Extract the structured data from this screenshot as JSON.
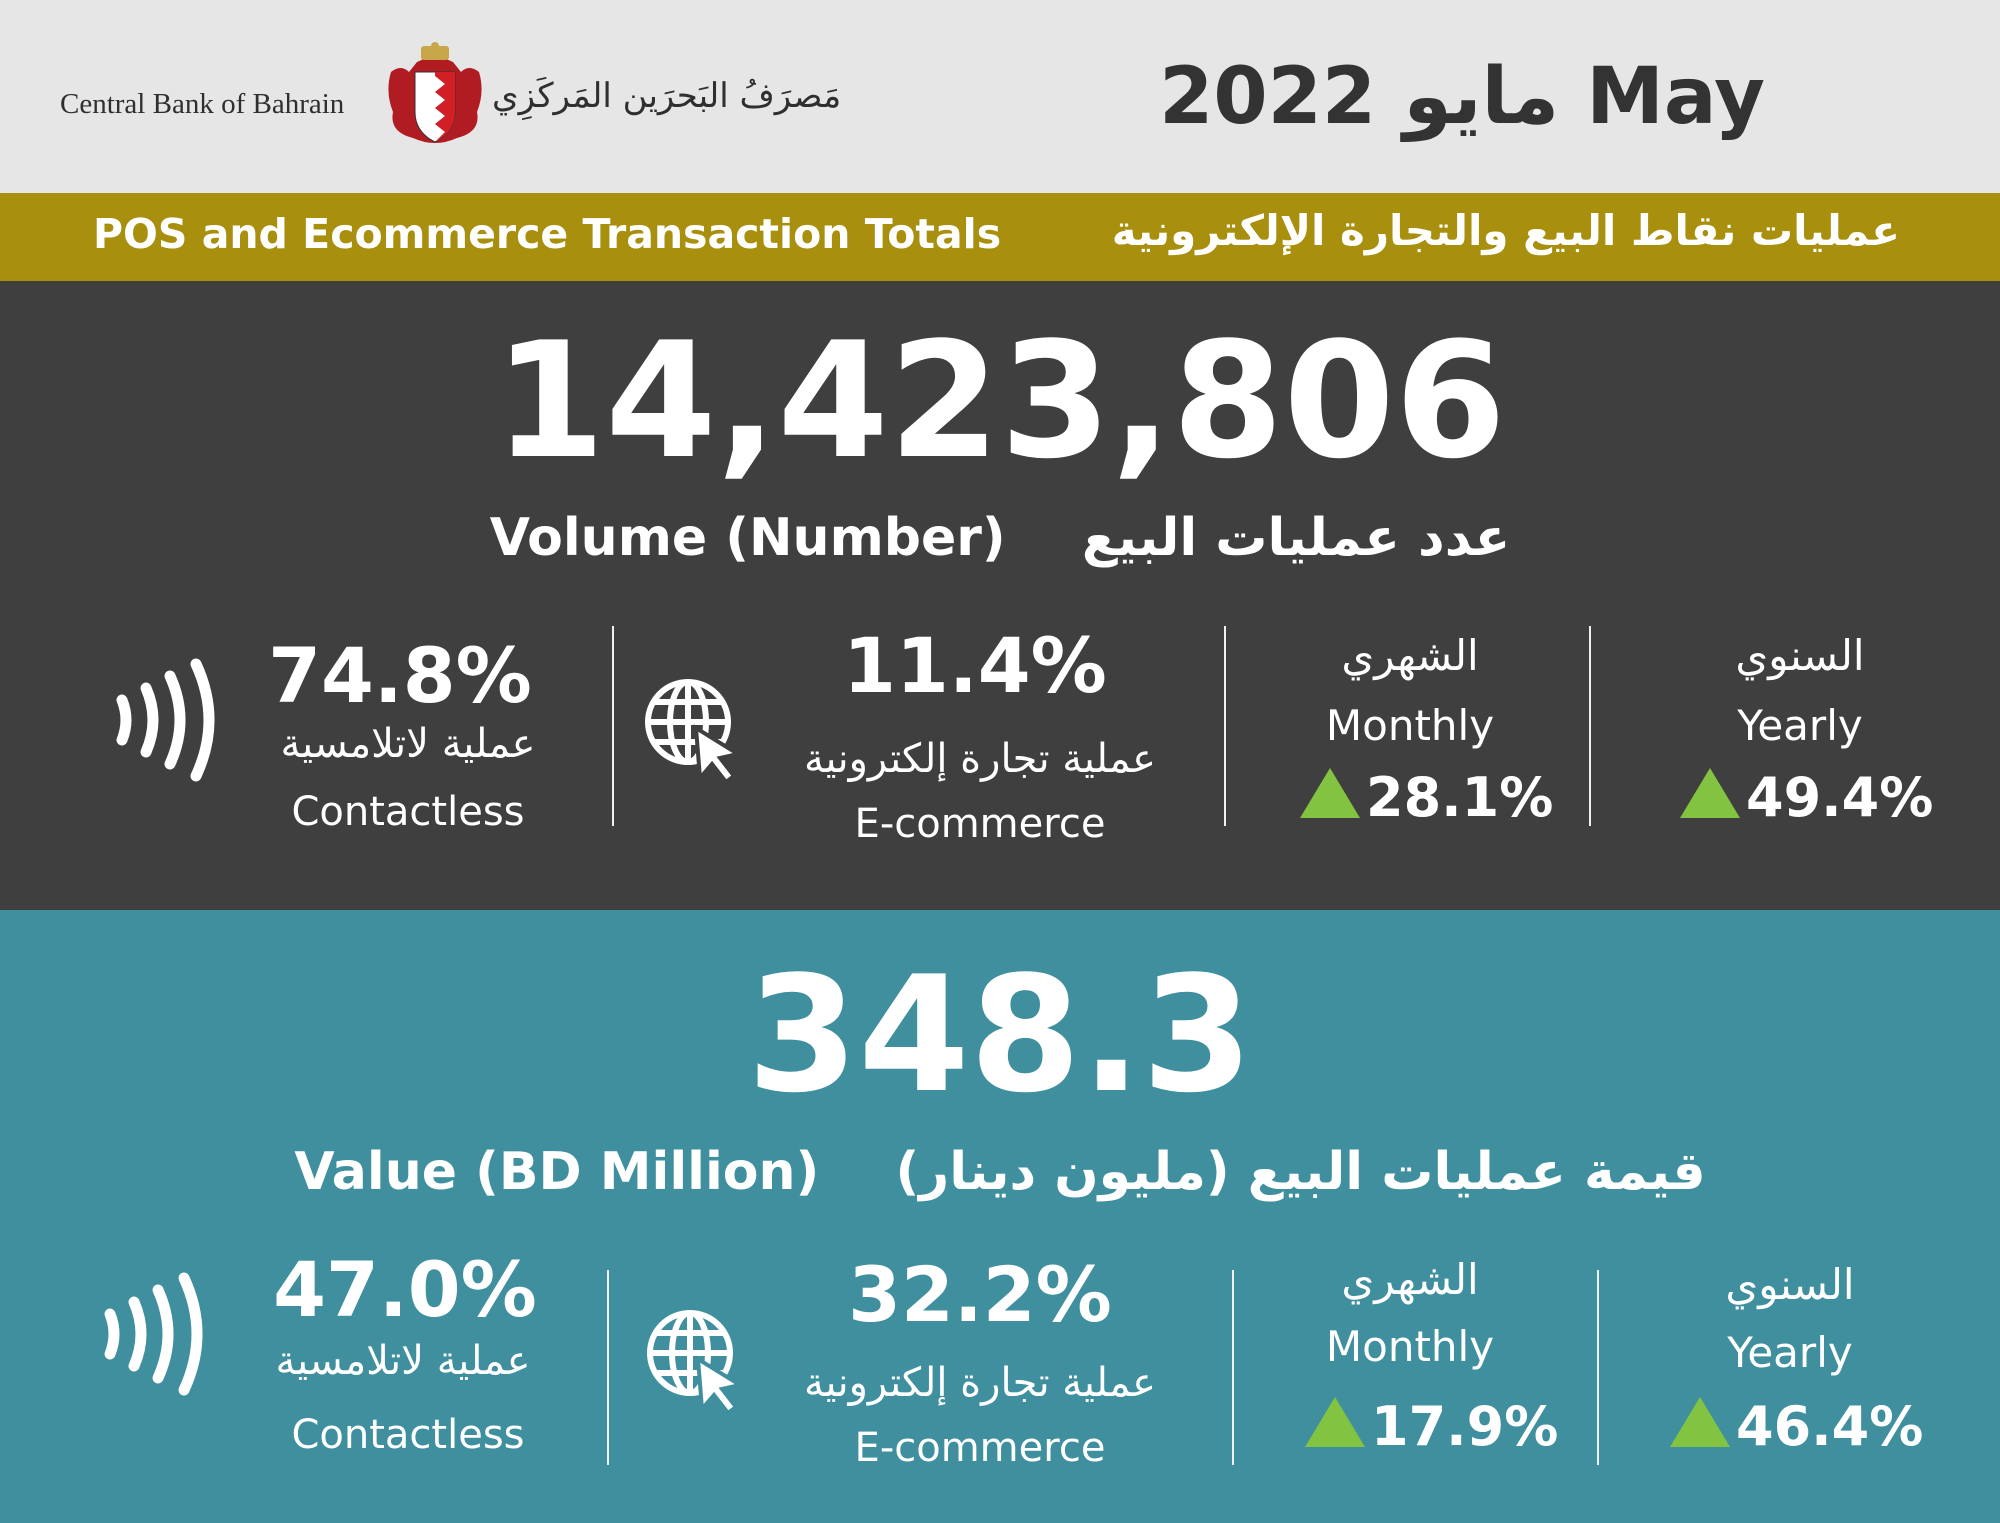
{
  "header": {
    "bank_name_en": "Central Bank of Bahrain",
    "bank_name_ar": "مَصرَفُ البَحرَين المَركَزِي",
    "crest_icon": "crest-icon",
    "date": "مايو 2022 May"
  },
  "band": {
    "title_en": "POS and Ecommerce Transaction Totals",
    "title_ar": "عمليات نقاط البيع والتجارة الإلكترونية",
    "color": "#a8900e"
  },
  "volume": {
    "number": "14,423,806",
    "label_en": "Volume (Number)",
    "label_ar": "عدد عمليات البيع",
    "contactless": {
      "percent": "74.8%",
      "label_ar": "عملية لاتلامسية",
      "label_en": "Contactless",
      "icon": "contactless-icon"
    },
    "ecommerce": {
      "percent": "11.4%",
      "label_ar": "عملية تجارة إلكترونية",
      "label_en": "E-commerce",
      "icon": "globe-cursor-icon"
    },
    "monthly": {
      "label_ar": "الشهري",
      "label_en": "Monthly",
      "change": "28.1%"
    },
    "yearly": {
      "label_ar": "السنوي",
      "label_en": "Yearly",
      "change": "49.4%"
    },
    "bg_color": "#3f3f3f"
  },
  "value": {
    "number": "348.3",
    "label_en": "Value (BD Million)",
    "label_ar": "قيمة عمليات البيع (مليون دينار)",
    "contactless": {
      "percent": "47.0%",
      "label_ar": "عملية لاتلامسية",
      "label_en": "Contactless",
      "icon": "contactless-icon"
    },
    "ecommerce": {
      "percent": "32.2%",
      "label_ar": "عملية تجارة إلكترونية",
      "label_en": "E-commerce",
      "icon": "globe-cursor-icon"
    },
    "monthly": {
      "label_ar": "الشهري",
      "label_en": "Monthly",
      "change": "17.9%"
    },
    "yearly": {
      "label_ar": "السنوي",
      "label_en": "Yearly",
      "change": "46.4%"
    },
    "bg_color": "#3f8f9f"
  },
  "colors": {
    "up_arrow": "#82c341",
    "text": "#ffffff"
  }
}
